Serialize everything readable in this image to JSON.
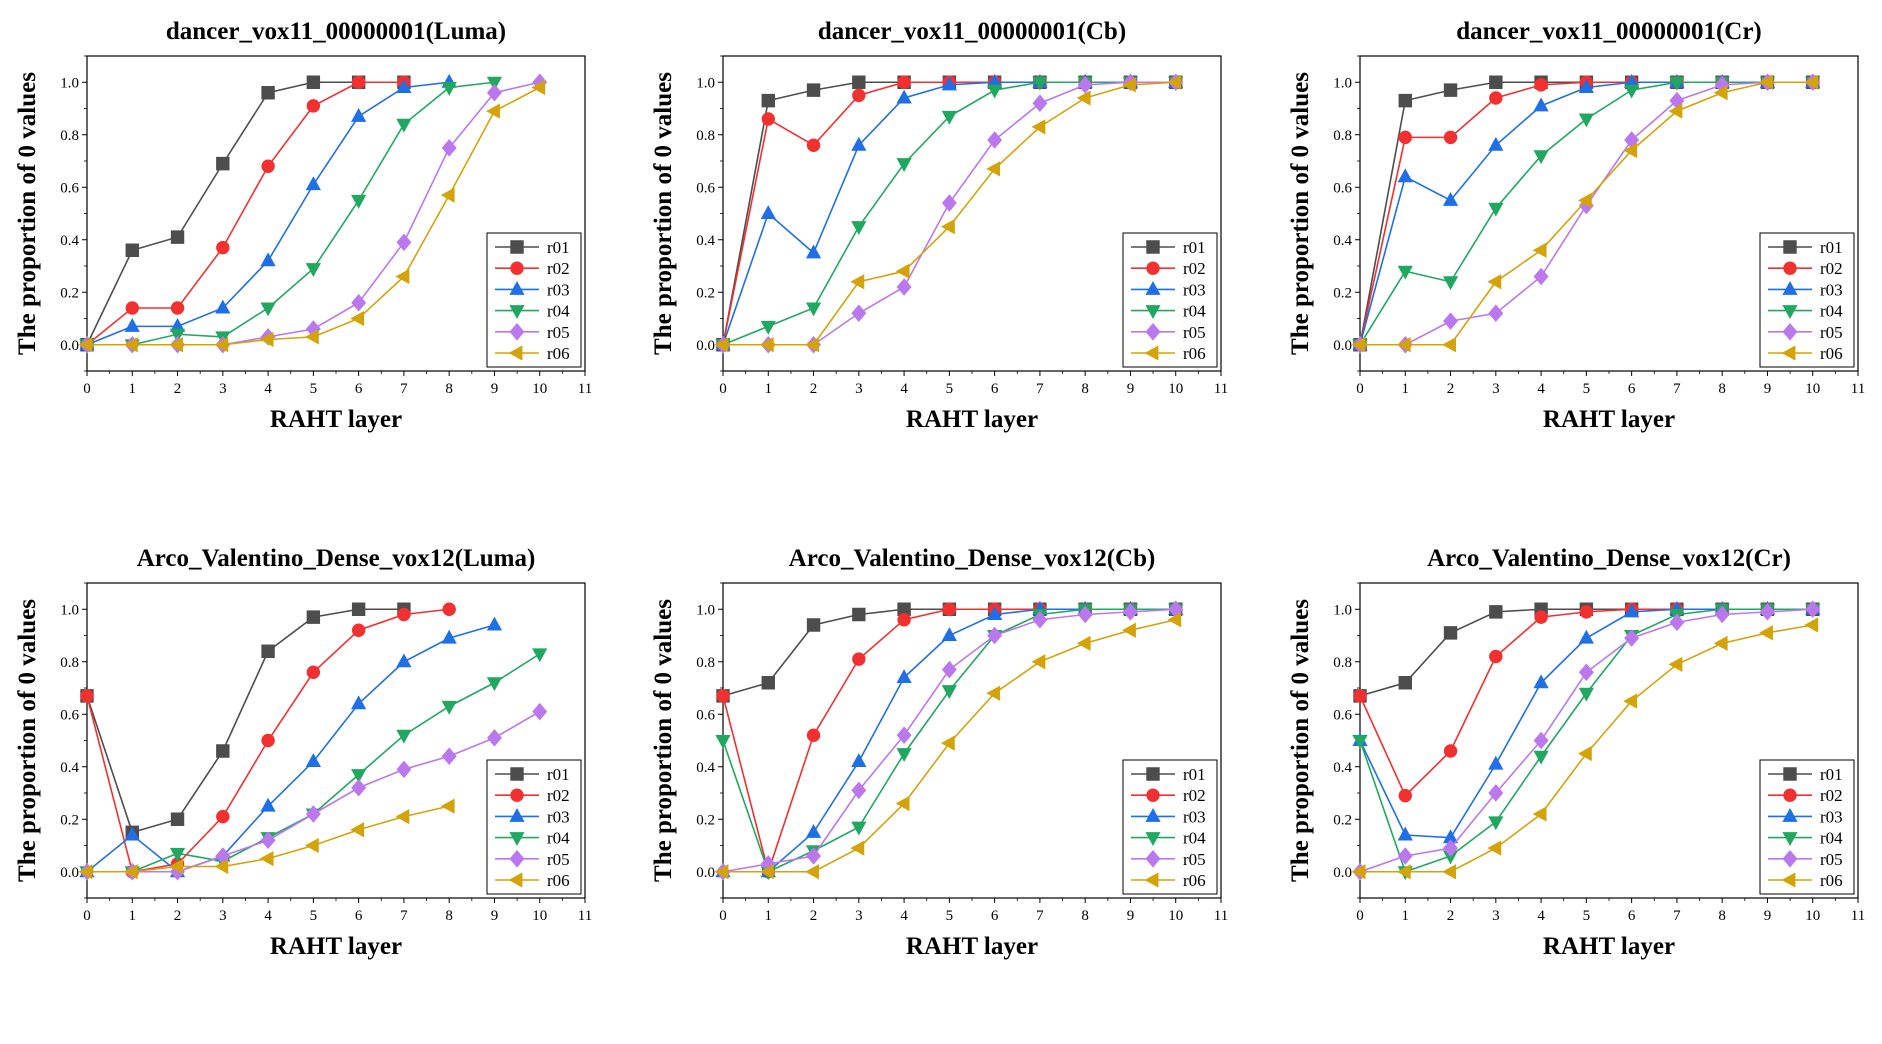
{
  "series_names": [
    "r01",
    "r02",
    "r03",
    "r04",
    "r05",
    "r06"
  ],
  "series_colors": [
    "#4d4d4d",
    "#f23030",
    "#1f6fe6",
    "#20a860",
    "#bb77ee",
    "#d4a30a"
  ],
  "series_markers": [
    "square",
    "circle",
    "triangle-up",
    "triangle-down",
    "diamond",
    "triangle-left"
  ],
  "chart_data": [
    {
      "type": "line",
      "title": "dancer_vox11_00000001(Luma)",
      "xlabel": "RAHT layer",
      "ylabel": "The proportion of 0 values",
      "xlim": [
        0,
        11
      ],
      "ylim": [
        -0.1,
        1.1
      ],
      "xticks": [
        0,
        1,
        2,
        3,
        4,
        5,
        6,
        7,
        8,
        9,
        10,
        11
      ],
      "yticks": [
        0.0,
        0.2,
        0.4,
        0.6,
        0.8,
        1.0
      ],
      "legend": "bottom-right",
      "series": [
        {
          "name": "r01",
          "x": [
            0,
            1,
            2,
            3,
            4,
            5,
            6,
            7
          ],
          "y": [
            0.0,
            0.36,
            0.41,
            0.69,
            0.96,
            1.0,
            1.0,
            1.0
          ]
        },
        {
          "name": "r02",
          "x": [
            0,
            1,
            2,
            3,
            4,
            5,
            6,
            7
          ],
          "y": [
            0.0,
            0.14,
            0.14,
            0.37,
            0.68,
            0.91,
            1.0,
            1.0
          ]
        },
        {
          "name": "r03",
          "x": [
            0,
            1,
            2,
            3,
            4,
            5,
            6,
            7,
            8
          ],
          "y": [
            0.0,
            0.07,
            0.07,
            0.14,
            0.32,
            0.61,
            0.87,
            0.98,
            1.0
          ]
        },
        {
          "name": "r04",
          "x": [
            0,
            1,
            2,
            3,
            4,
            5,
            6,
            7,
            8,
            9
          ],
          "y": [
            0.0,
            0.0,
            0.04,
            0.03,
            0.14,
            0.29,
            0.55,
            0.84,
            0.98,
            1.0
          ]
        },
        {
          "name": "r05",
          "x": [
            0,
            1,
            2,
            3,
            4,
            5,
            6,
            7,
            8,
            9,
            10
          ],
          "y": [
            0.0,
            0.0,
            0.0,
            0.0,
            0.03,
            0.06,
            0.16,
            0.39,
            0.75,
            0.96,
            1.0
          ]
        },
        {
          "name": "r06",
          "x": [
            0,
            1,
            2,
            3,
            4,
            5,
            6,
            7,
            8,
            9,
            10
          ],
          "y": [
            0.0,
            0.0,
            0.0,
            0.0,
            0.02,
            0.03,
            0.1,
            0.26,
            0.57,
            0.89,
            0.98
          ]
        }
      ]
    },
    {
      "type": "line",
      "title": "dancer_vox11_00000001(Cb)",
      "xlabel": "RAHT layer",
      "ylabel": "The proportion of 0 values",
      "xlim": [
        0,
        11
      ],
      "ylim": [
        -0.1,
        1.1
      ],
      "xticks": [
        0,
        1,
        2,
        3,
        4,
        5,
        6,
        7,
        8,
        9,
        10,
        11
      ],
      "yticks": [
        0.0,
        0.2,
        0.4,
        0.6,
        0.8,
        1.0
      ],
      "legend": "bottom-right",
      "series": [
        {
          "name": "r01",
          "x": [
            0,
            1,
            2,
            3,
            4,
            5,
            6,
            7,
            8,
            9,
            10
          ],
          "y": [
            0.0,
            0.93,
            0.97,
            1.0,
            1.0,
            1.0,
            1.0,
            1.0,
            1.0,
            1.0,
            1.0
          ]
        },
        {
          "name": "r02",
          "x": [
            0,
            1,
            2,
            3,
            4,
            5,
            6,
            7,
            8,
            9,
            10
          ],
          "y": [
            0.0,
            0.86,
            0.76,
            0.95,
            1.0,
            1.0,
            1.0,
            1.0,
            1.0,
            1.0,
            1.0
          ]
        },
        {
          "name": "r03",
          "x": [
            0,
            1,
            2,
            3,
            4,
            5,
            6,
            7,
            8,
            9,
            10
          ],
          "y": [
            0.0,
            0.5,
            0.35,
            0.76,
            0.94,
            0.99,
            1.0,
            1.0,
            1.0,
            1.0,
            1.0
          ]
        },
        {
          "name": "r04",
          "x": [
            0,
            1,
            2,
            3,
            4,
            5,
            6,
            7,
            8,
            9,
            10
          ],
          "y": [
            0.0,
            0.07,
            0.14,
            0.45,
            0.69,
            0.87,
            0.97,
            1.0,
            1.0,
            1.0,
            1.0
          ]
        },
        {
          "name": "r05",
          "x": [
            0,
            1,
            2,
            3,
            4,
            5,
            6,
            7,
            8,
            9,
            10
          ],
          "y": [
            0.0,
            0.0,
            0.0,
            0.12,
            0.22,
            0.54,
            0.78,
            0.92,
            0.99,
            1.0,
            1.0
          ]
        },
        {
          "name": "r06",
          "x": [
            0,
            1,
            2,
            3,
            4,
            5,
            6,
            7,
            8,
            9,
            10
          ],
          "y": [
            0.0,
            0.0,
            0.0,
            0.24,
            0.28,
            0.45,
            0.67,
            0.83,
            0.94,
            0.99,
            1.0
          ]
        }
      ]
    },
    {
      "type": "line",
      "title": "dancer_vox11_00000001(Cr)",
      "xlabel": "RAHT layer",
      "ylabel": "The proportion of 0 values",
      "xlim": [
        0,
        11
      ],
      "ylim": [
        -0.1,
        1.1
      ],
      "xticks": [
        0,
        1,
        2,
        3,
        4,
        5,
        6,
        7,
        8,
        9,
        10,
        11
      ],
      "yticks": [
        0.0,
        0.2,
        0.4,
        0.6,
        0.8,
        1.0
      ],
      "legend": "bottom-right",
      "series": [
        {
          "name": "r01",
          "x": [
            0,
            1,
            2,
            3,
            4,
            5,
            6,
            7,
            8,
            9,
            10
          ],
          "y": [
            0.0,
            0.93,
            0.97,
            1.0,
            1.0,
            1.0,
            1.0,
            1.0,
            1.0,
            1.0,
            1.0
          ]
        },
        {
          "name": "r02",
          "x": [
            0,
            1,
            2,
            3,
            4,
            5,
            6,
            7,
            8,
            9,
            10
          ],
          "y": [
            0.0,
            0.79,
            0.79,
            0.94,
            0.99,
            1.0,
            1.0,
            1.0,
            1.0,
            1.0,
            1.0
          ]
        },
        {
          "name": "r03",
          "x": [
            0,
            1,
            2,
            3,
            4,
            5,
            6,
            7,
            8,
            9,
            10
          ],
          "y": [
            0.0,
            0.64,
            0.55,
            0.76,
            0.91,
            0.98,
            1.0,
            1.0,
            1.0,
            1.0,
            1.0
          ]
        },
        {
          "name": "r04",
          "x": [
            0,
            1,
            2,
            3,
            4,
            5,
            6,
            7,
            8,
            9,
            10
          ],
          "y": [
            0.0,
            0.28,
            0.24,
            0.52,
            0.72,
            0.86,
            0.97,
            1.0,
            1.0,
            1.0,
            1.0
          ]
        },
        {
          "name": "r05",
          "x": [
            0,
            1,
            2,
            3,
            4,
            5,
            6,
            7,
            8,
            9,
            10
          ],
          "y": [
            0.0,
            0.0,
            0.09,
            0.12,
            0.26,
            0.53,
            0.78,
            0.93,
            0.99,
            1.0,
            1.0
          ]
        },
        {
          "name": "r06",
          "x": [
            0,
            1,
            2,
            3,
            4,
            5,
            6,
            7,
            8,
            9,
            10
          ],
          "y": [
            0.0,
            0.0,
            0.0,
            0.24,
            0.36,
            0.55,
            0.74,
            0.89,
            0.96,
            1.0,
            1.0
          ]
        }
      ]
    },
    {
      "type": "line",
      "title": "Arco_Valentino_Dense_vox12(Luma)",
      "xlabel": "RAHT layer",
      "ylabel": "The proportion of 0 values",
      "xlim": [
        0,
        11
      ],
      "ylim": [
        -0.1,
        1.1
      ],
      "xticks": [
        0,
        1,
        2,
        3,
        4,
        5,
        6,
        7,
        8,
        9,
        10,
        11
      ],
      "yticks": [
        0.0,
        0.2,
        0.4,
        0.6,
        0.8,
        1.0
      ],
      "legend": "bottom-right",
      "series": [
        {
          "name": "r01",
          "x": [
            0,
            1,
            2,
            3,
            4,
            5,
            6,
            7
          ],
          "y": [
            0.67,
            0.15,
            0.2,
            0.46,
            0.84,
            0.97,
            1.0,
            1.0
          ]
        },
        {
          "name": "r02",
          "x": [
            0,
            1,
            2,
            3,
            4,
            5,
            6,
            7,
            8
          ],
          "y": [
            0.67,
            0.0,
            0.03,
            0.21,
            0.5,
            0.76,
            0.92,
            0.98,
            1.0
          ]
        },
        {
          "name": "r03",
          "x": [
            0,
            1,
            2,
            3,
            4,
            5,
            6,
            7,
            8,
            9
          ],
          "y": [
            0.0,
            0.14,
            0.0,
            0.06,
            0.25,
            0.42,
            0.64,
            0.8,
            0.89,
            0.94
          ]
        },
        {
          "name": "r04",
          "x": [
            0,
            1,
            2,
            3,
            4,
            5,
            6,
            7,
            8,
            9,
            10
          ],
          "y": [
            0.0,
            0.0,
            0.07,
            0.04,
            0.13,
            0.22,
            0.37,
            0.52,
            0.63,
            0.72,
            0.83
          ]
        },
        {
          "name": "r05",
          "x": [
            0,
            1,
            2,
            3,
            4,
            5,
            6,
            7,
            8,
            9,
            10
          ],
          "y": [
            0.0,
            0.0,
            0.0,
            0.06,
            0.12,
            0.22,
            0.32,
            0.39,
            0.44,
            0.51,
            0.61
          ]
        },
        {
          "name": "r06",
          "x": [
            0,
            1,
            2,
            3,
            4,
            5,
            6,
            7,
            8
          ],
          "y": [
            0.0,
            0.0,
            0.02,
            0.02,
            0.05,
            0.1,
            0.16,
            0.21,
            0.25
          ]
        }
      ]
    },
    {
      "type": "line",
      "title": "Arco_Valentino_Dense_vox12(Cb)",
      "xlabel": "RAHT layer",
      "ylabel": "The proportion of 0 values",
      "xlim": [
        0,
        11
      ],
      "ylim": [
        -0.1,
        1.1
      ],
      "xticks": [
        0,
        1,
        2,
        3,
        4,
        5,
        6,
        7,
        8,
        9,
        10,
        11
      ],
      "yticks": [
        0.0,
        0.2,
        0.4,
        0.6,
        0.8,
        1.0
      ],
      "legend": "bottom-right",
      "series": [
        {
          "name": "r01",
          "x": [
            0,
            1,
            2,
            3,
            4,
            5,
            6,
            7,
            8,
            9,
            10
          ],
          "y": [
            0.67,
            0.72,
            0.94,
            0.98,
            1.0,
            1.0,
            1.0,
            1.0,
            1.0,
            1.0,
            1.0
          ]
        },
        {
          "name": "r02",
          "x": [
            0,
            1,
            2,
            3,
            4,
            5,
            6,
            7,
            8,
            9,
            10
          ],
          "y": [
            0.67,
            0.0,
            0.52,
            0.81,
            0.96,
            1.0,
            1.0,
            1.0,
            1.0,
            1.0,
            1.0
          ]
        },
        {
          "name": "r03",
          "x": [
            0,
            1,
            2,
            3,
            4,
            5,
            6,
            7,
            8,
            9,
            10
          ],
          "y": [
            0.0,
            0.0,
            0.15,
            0.42,
            0.74,
            0.9,
            0.98,
            1.0,
            1.0,
            1.0,
            1.0
          ]
        },
        {
          "name": "r04",
          "x": [
            0,
            1,
            2,
            3,
            4,
            5,
            6,
            7,
            8,
            9,
            10
          ],
          "y": [
            0.5,
            0.0,
            0.08,
            0.17,
            0.45,
            0.69,
            0.9,
            0.98,
            1.0,
            1.0,
            1.0
          ]
        },
        {
          "name": "r05",
          "x": [
            0,
            1,
            2,
            3,
            4,
            5,
            6,
            7,
            8,
            9,
            10
          ],
          "y": [
            0.0,
            0.03,
            0.06,
            0.31,
            0.52,
            0.77,
            0.9,
            0.96,
            0.98,
            0.99,
            1.0
          ]
        },
        {
          "name": "r06",
          "x": [
            0,
            1,
            2,
            3,
            4,
            5,
            6,
            7,
            8,
            9,
            10
          ],
          "y": [
            0.0,
            0.0,
            0.0,
            0.09,
            0.26,
            0.49,
            0.68,
            0.8,
            0.87,
            0.92,
            0.96
          ]
        }
      ]
    },
    {
      "type": "line",
      "title": "Arco_Valentino_Dense_vox12(Cr)",
      "xlabel": "RAHT layer",
      "ylabel": "The proportion of 0 values",
      "xlim": [
        0,
        11
      ],
      "ylim": [
        -0.1,
        1.1
      ],
      "xticks": [
        0,
        1,
        2,
        3,
        4,
        5,
        6,
        7,
        8,
        9,
        10,
        11
      ],
      "yticks": [
        0.0,
        0.2,
        0.4,
        0.6,
        0.8,
        1.0
      ],
      "legend": "bottom-right",
      "series": [
        {
          "name": "r01",
          "x": [
            0,
            1,
            2,
            3,
            4,
            5,
            6,
            7,
            8,
            9,
            10
          ],
          "y": [
            0.67,
            0.72,
            0.91,
            0.99,
            1.0,
            1.0,
            1.0,
            1.0,
            1.0,
            1.0,
            1.0
          ]
        },
        {
          "name": "r02",
          "x": [
            0,
            1,
            2,
            3,
            4,
            5,
            6,
            7,
            8,
            9,
            10
          ],
          "y": [
            0.67,
            0.29,
            0.46,
            0.82,
            0.97,
            0.99,
            1.0,
            1.0,
            1.0,
            1.0,
            1.0
          ]
        },
        {
          "name": "r03",
          "x": [
            0,
            1,
            2,
            3,
            4,
            5,
            6,
            7,
            8,
            9,
            10
          ],
          "y": [
            0.5,
            0.14,
            0.13,
            0.41,
            0.72,
            0.89,
            0.99,
            1.0,
            1.0,
            1.0,
            1.0
          ]
        },
        {
          "name": "r04",
          "x": [
            0,
            1,
            2,
            3,
            4,
            5,
            6,
            7,
            8,
            9,
            10
          ],
          "y": [
            0.5,
            0.0,
            0.06,
            0.19,
            0.44,
            0.68,
            0.9,
            0.98,
            1.0,
            1.0,
            1.0
          ]
        },
        {
          "name": "r05",
          "x": [
            0,
            1,
            2,
            3,
            4,
            5,
            6,
            7,
            8,
            9,
            10
          ],
          "y": [
            0.0,
            0.06,
            0.09,
            0.3,
            0.5,
            0.76,
            0.89,
            0.95,
            0.98,
            0.99,
            1.0
          ]
        },
        {
          "name": "r06",
          "x": [
            0,
            1,
            2,
            3,
            4,
            5,
            6,
            7,
            8,
            9,
            10
          ],
          "y": [
            0.0,
            0.0,
            0.0,
            0.09,
            0.22,
            0.45,
            0.65,
            0.79,
            0.87,
            0.91,
            0.94
          ]
        }
      ]
    }
  ]
}
